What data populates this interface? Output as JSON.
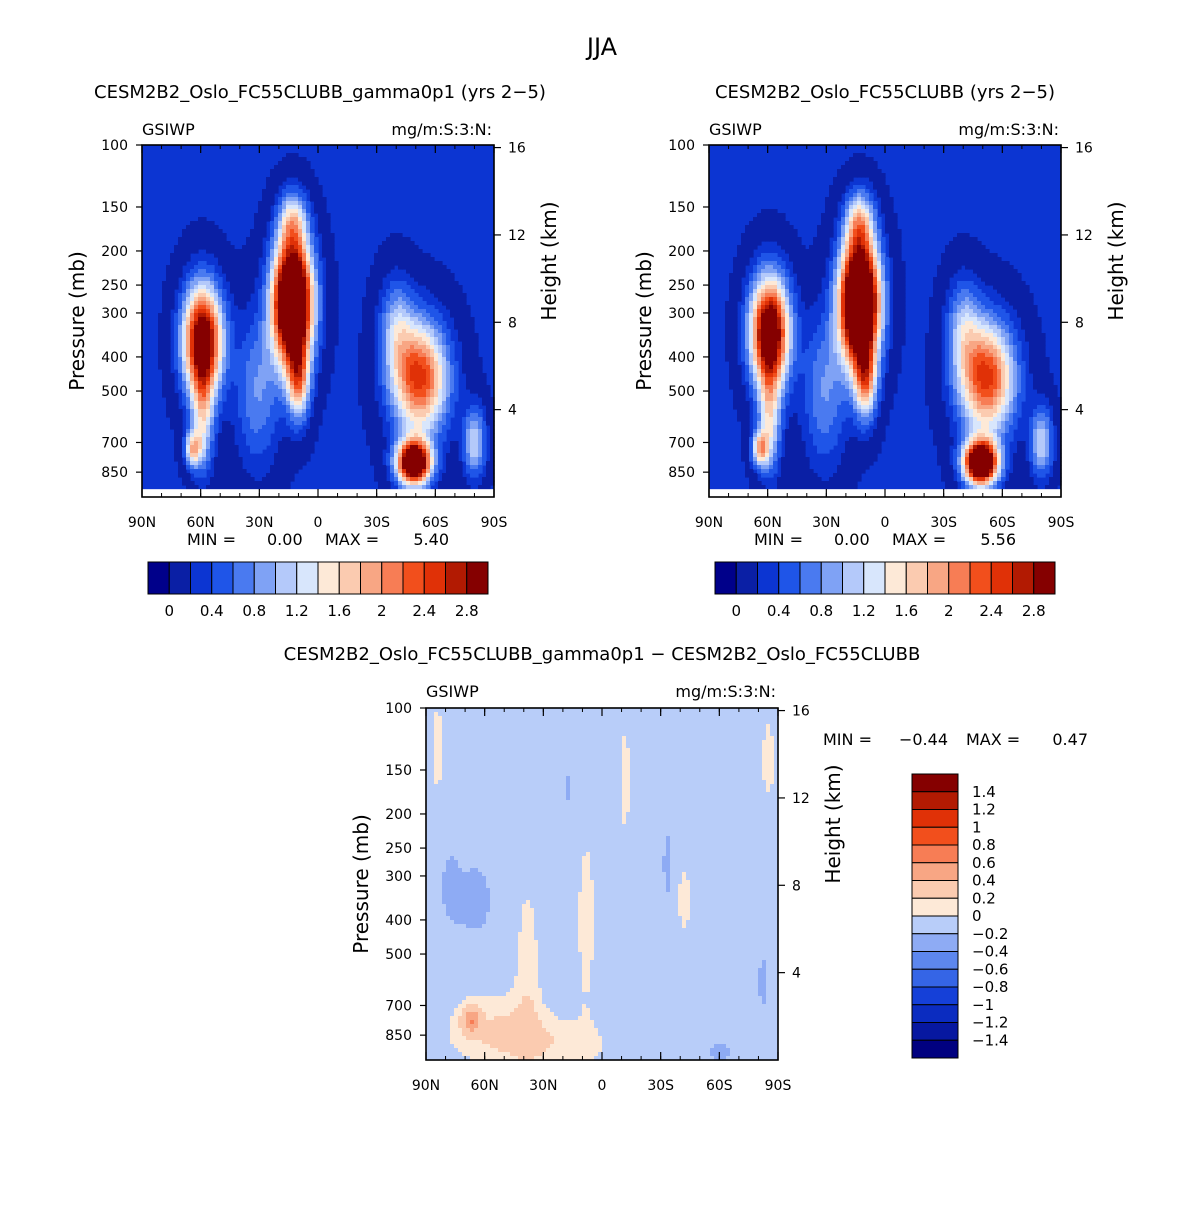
{
  "season": "JJA",
  "colors": {
    "seq": [
      "#00008a",
      "#0a1fa5",
      "#0c35d2",
      "#1f55e8",
      "#4a7af0",
      "#7fa2f5",
      "#b4c9fa",
      "#d8e6fc",
      "#fde9d7",
      "#fbcbb0",
      "#f8a684",
      "#f77d55",
      "#f24f1c",
      "#e03107",
      "#b21a02",
      "#850000"
    ],
    "div": [
      "#000080",
      "#0718a0",
      "#0b2cc0",
      "#1540d8",
      "#3565e6",
      "#5d87ee",
      "#8eabf4",
      "#b8cdf9",
      "#d8e6fc",
      "#fde9d7",
      "#fbcbb0",
      "#f8a684",
      "#f77d55",
      "#f24f1c",
      "#e03107",
      "#b21a02",
      "#850000"
    ]
  },
  "chart_data": [
    {
      "type": "heatmap",
      "title": "CESM2B2_Oslo_FC55CLUBB_gamma0p1 (yrs 2-5)",
      "variable": "GSIWP",
      "units": "mg/m:S:3:N:",
      "xlabel": "",
      "ylabel": "Pressure (mb)",
      "y2label": "Height (km)",
      "xticks": [
        "90N",
        "60N",
        "30N",
        "0",
        "30S",
        "60S",
        "90S"
      ],
      "xlim": [
        90,
        -90
      ],
      "yticks": [
        100,
        150,
        200,
        250,
        300,
        400,
        500,
        700,
        850
      ],
      "ylim": [
        100,
        1000
      ],
      "y2ticks": [
        16,
        12,
        8,
        4
      ],
      "stats": {
        "min_label": "MIN =",
        "min": "0.00",
        "max_label": "MAX =",
        "max": "5.40"
      },
      "colorbar": {
        "orientation": "horizontal",
        "labels": [
          "0",
          "0.4",
          "0.8",
          "1.2",
          "1.6",
          "2",
          "2.4",
          "2.8"
        ]
      },
      "blobs": [
        {
          "lat": 59,
          "p": 360,
          "slat": 7,
          "sp": 0.25,
          "amp": 3.4
        },
        {
          "lat": 59,
          "p": 600,
          "slat": 4,
          "sp": 0.25,
          "amp": 1.2
        },
        {
          "lat": 64,
          "p": 730,
          "slat": 3,
          "sp": 0.08,
          "amp": 1.5
        },
        {
          "lat": 13,
          "p": 280,
          "slat": 7,
          "sp": 0.28,
          "amp": 4.8
        },
        {
          "lat": 10,
          "p": 470,
          "slat": 4,
          "sp": 0.18,
          "amp": 1.7
        },
        {
          "lat": 13,
          "p": 165,
          "slat": 5,
          "sp": 0.14,
          "amp": 1.2
        },
        {
          "lat": -52,
          "p": 460,
          "slat": 10,
          "sp": 0.26,
          "amp": 2.5
        },
        {
          "lat": -49,
          "p": 800,
          "slat": 6,
          "sp": 0.1,
          "amp": 4.0
        },
        {
          "lat": -40,
          "p": 330,
          "slat": 6,
          "sp": 0.22,
          "amp": 0.9
        },
        {
          "lat": -80,
          "p": 700,
          "slat": 4,
          "sp": 0.16,
          "amp": 1.2
        },
        {
          "lat": 31,
          "p": 500,
          "slat": 8,
          "sp": 0.35,
          "amp": 0.8
        }
      ]
    },
    {
      "type": "heatmap",
      "title": "CESM2B2_Oslo_FC55CLUBB (yrs 2-5)",
      "variable": "GSIWP",
      "units": "mg/m:S:3:N:",
      "xlabel": "",
      "ylabel": "Pressure (mb)",
      "y2label": "Height (km)",
      "xticks": [
        "90N",
        "60N",
        "30N",
        "0",
        "30S",
        "60S",
        "90S"
      ],
      "xlim": [
        90,
        -90
      ],
      "yticks": [
        100,
        150,
        200,
        250,
        300,
        400,
        500,
        700,
        850
      ],
      "ylim": [
        100,
        1000
      ],
      "y2ticks": [
        16,
        12,
        8,
        4
      ],
      "stats": {
        "min_label": "MIN =",
        "min": "0.00",
        "max_label": "MAX =",
        "max": "5.56"
      },
      "colorbar": {
        "orientation": "horizontal",
        "labels": [
          "0",
          "0.4",
          "0.8",
          "1.2",
          "1.6",
          "2",
          "2.4",
          "2.8"
        ]
      },
      "blobs": [
        {
          "lat": 59,
          "p": 340,
          "slat": 7,
          "sp": 0.25,
          "amp": 3.5
        },
        {
          "lat": 59,
          "p": 600,
          "slat": 4,
          "sp": 0.25,
          "amp": 1.3
        },
        {
          "lat": 64,
          "p": 730,
          "slat": 3,
          "sp": 0.08,
          "amp": 1.6
        },
        {
          "lat": 13,
          "p": 280,
          "slat": 7,
          "sp": 0.28,
          "amp": 5.0
        },
        {
          "lat": 10,
          "p": 470,
          "slat": 4,
          "sp": 0.18,
          "amp": 1.7
        },
        {
          "lat": 13,
          "p": 165,
          "slat": 5,
          "sp": 0.14,
          "amp": 1.3
        },
        {
          "lat": -52,
          "p": 460,
          "slat": 10,
          "sp": 0.26,
          "amp": 2.5
        },
        {
          "lat": -49,
          "p": 800,
          "slat": 6,
          "sp": 0.1,
          "amp": 4.2
        },
        {
          "lat": -40,
          "p": 330,
          "slat": 6,
          "sp": 0.22,
          "amp": 0.9
        },
        {
          "lat": -80,
          "p": 700,
          "slat": 4,
          "sp": 0.16,
          "amp": 1.2
        },
        {
          "lat": 31,
          "p": 500,
          "slat": 8,
          "sp": 0.35,
          "amp": 0.8
        }
      ]
    },
    {
      "type": "heatmap",
      "title": "CESM2B2_Oslo_FC55CLUBB_gamma0p1 - CESM2B2_Oslo_FC55CLUBB",
      "variable": "GSIWP",
      "units": "mg/m:S:3:N:",
      "xlabel": "",
      "ylabel": "Pressure (mb)",
      "y2label": "Height (km)",
      "xticks": [
        "90N",
        "60N",
        "30N",
        "0",
        "30S",
        "60S",
        "90S"
      ],
      "xlim": [
        90,
        -90
      ],
      "yticks": [
        100,
        150,
        200,
        250,
        300,
        400,
        500,
        700,
        850
      ],
      "ylim": [
        100,
        1000
      ],
      "y2ticks": [
        16,
        12,
        8,
        4
      ],
      "stats": {
        "min_label": "MIN =",
        "min": "-0.44",
        "max_label": "MAX =",
        "max": "0.47"
      },
      "colorbar": {
        "orientation": "vertical",
        "labels": [
          "1.4",
          "1.2",
          "1",
          "0.8",
          "0.6",
          "0.4",
          "0.2",
          "0",
          "-0.2",
          "-0.4",
          "-0.6",
          "-0.8",
          "-1",
          "-1.2",
          "-1.4"
        ]
      },
      "diff_regions": [
        {
          "lat": 65,
          "p": 350,
          "slat": 8,
          "sp": 0.22,
          "amp": -0.3
        },
        {
          "lat": 78,
          "p": 320,
          "slat": 4,
          "sp": 0.2,
          "amp": -0.25
        },
        {
          "lat": 17,
          "p": 170,
          "slat": 2,
          "sp": 0.12,
          "amp": -0.25
        },
        {
          "lat": -33,
          "p": 280,
          "slat": 2,
          "sp": 0.35,
          "amp": -0.25
        },
        {
          "lat": -60,
          "p": 950,
          "slat": 6,
          "sp": 0.05,
          "amp": -0.3
        },
        {
          "lat": -82,
          "p": 600,
          "slat": 2,
          "sp": 0.3,
          "amp": -0.25
        },
        {
          "lat": 67,
          "p": 770,
          "slat": 3,
          "sp": 0.06,
          "amp": 0.45
        },
        {
          "lat": 55,
          "p": 800,
          "slat": 20,
          "sp": 0.18,
          "amp": 0.18
        },
        {
          "lat": 38,
          "p": 520,
          "slat": 5,
          "sp": 0.45,
          "amp": 0.15
        },
        {
          "lat": 8,
          "p": 400,
          "slat": 4,
          "sp": 0.5,
          "amp": 0.15
        },
        {
          "lat": -12,
          "p": 160,
          "slat": 2,
          "sp": 0.35,
          "amp": 0.15
        },
        {
          "lat": -42,
          "p": 350,
          "slat": 3,
          "sp": 0.2,
          "amp": 0.15
        },
        {
          "lat": 25,
          "p": 900,
          "slat": 25,
          "sp": 0.12,
          "amp": 0.15
        },
        {
          "lat": 84,
          "p": 130,
          "slat": 2,
          "sp": 0.3,
          "amp": 0.15
        },
        {
          "lat": -85,
          "p": 140,
          "slat": 3,
          "sp": 0.25,
          "amp": 0.15
        }
      ]
    }
  ]
}
